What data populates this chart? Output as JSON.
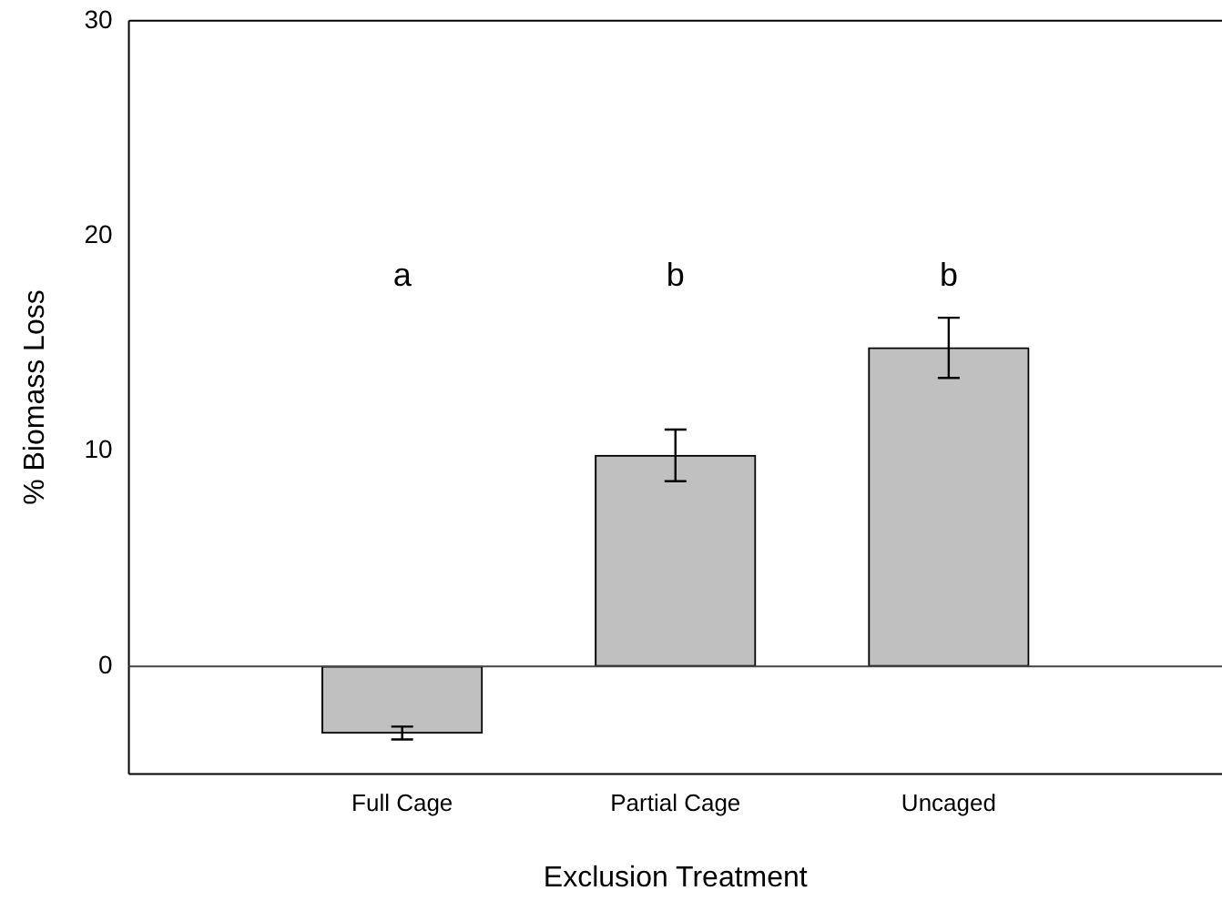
{
  "chart_data": {
    "type": "bar",
    "xlabel": "Exclusion Treatment",
    "ylabel": "% Biomass Loss",
    "categories": [
      "Full Cage",
      "Partial Cage",
      "Uncaged"
    ],
    "values": [
      -3.1,
      9.8,
      14.8
    ],
    "errors": [
      0.3,
      1.2,
      1.4
    ],
    "color": "#c0c0c0",
    "ylim": [
      -5,
      30
    ],
    "yticks": [
      0,
      10,
      20,
      30
    ],
    "grid": false,
    "ref_lines": [
      {
        "axis": "y",
        "value": 0
      }
    ],
    "annotations": [
      "a",
      "b",
      "b"
    ]
  }
}
